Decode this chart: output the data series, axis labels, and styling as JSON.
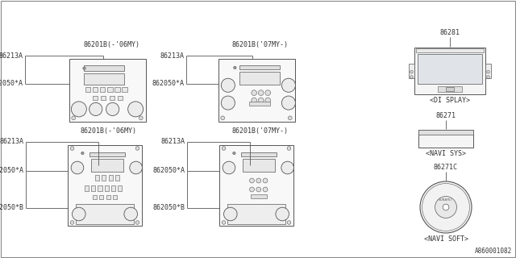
{
  "bg_color": "#ffffff",
  "line_color": "#555555",
  "text_color": "#333333",
  "diagram_number": "A860001082",
  "font_size": 6.0,
  "radio_tl_label": "86201B(-'06MY)",
  "radio_tr_label": "86201B('07MY-)",
  "radio_bl_label": "86201B(-'06MY)",
  "radio_br_label": "86201B('07MY-)",
  "display_label": "86281",
  "display_caption": "<DI SPLAY>",
  "navi_sys_label": "86271",
  "navi_sys_caption": "<NAVI SYS>",
  "navi_soft_label": "86271C",
  "navi_soft_caption": "<NAVI SOFT>"
}
